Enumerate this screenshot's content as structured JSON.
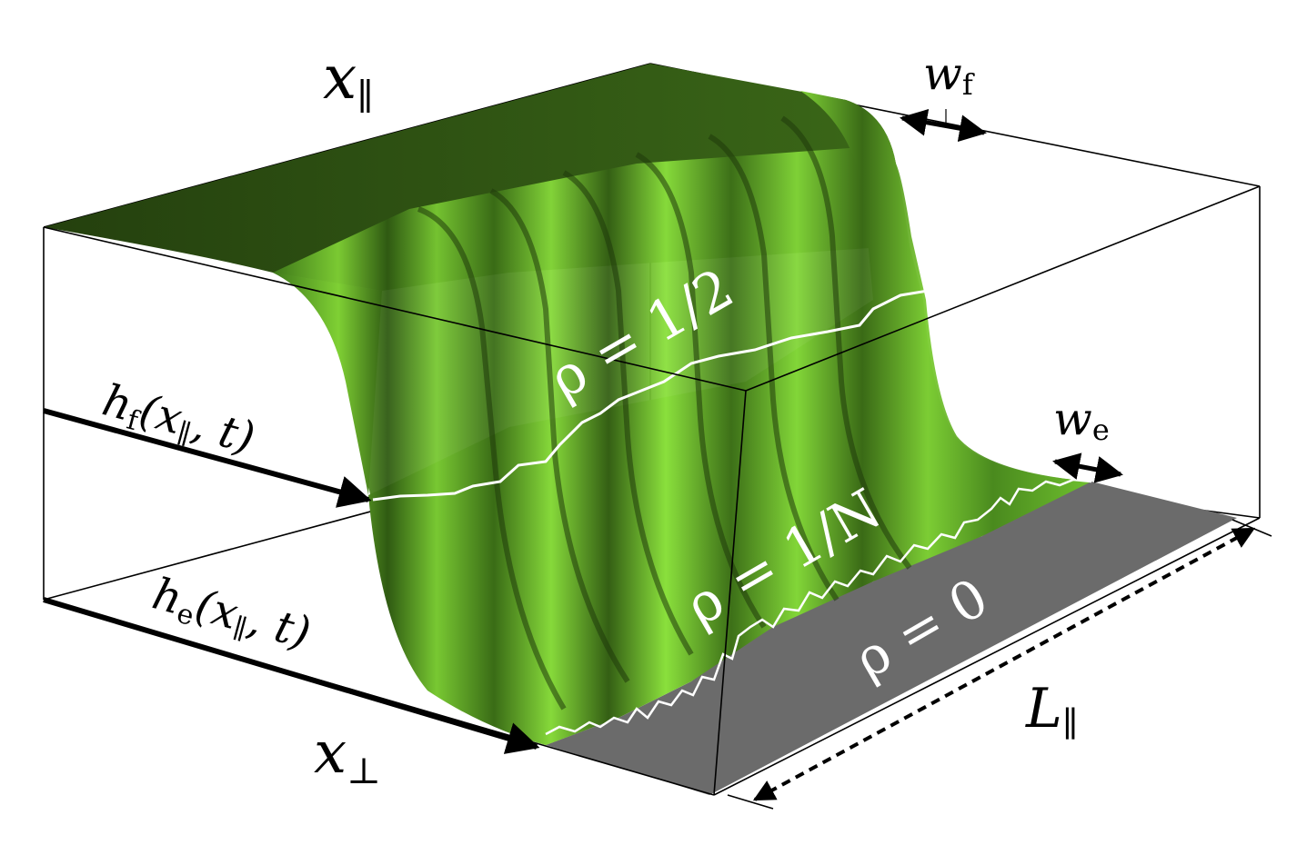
{
  "labels": {
    "x_parallel": {
      "base": "x",
      "sub": "∥"
    },
    "x_perp": {
      "base": "x",
      "sub": "⊥"
    },
    "w_f": {
      "base": "w",
      "sub": "f"
    },
    "w_e": {
      "base": "w",
      "sub": "e"
    },
    "h_f": {
      "base": "h",
      "sub": "f",
      "args_open": "(x",
      "args_sub": "∥",
      "args_close": ", t)"
    },
    "h_e": {
      "base": "h",
      "sub": "e",
      "args_open": "(x",
      "args_sub": "∥",
      "args_close": ", t)"
    },
    "L_parallel": {
      "base": "L",
      "sub": "∥"
    },
    "rho_half": "ρ = 1/2",
    "rho_inv_n": "ρ = 1/N",
    "rho_zero": "ρ = 0"
  },
  "colors": {
    "surface_dark": "#2c4a12",
    "surface_mid": "#4f8f1f",
    "surface_light": "#8fe03a",
    "floor": "#6b6b6b",
    "contour": "#ffffff",
    "box_line": "#000000"
  }
}
